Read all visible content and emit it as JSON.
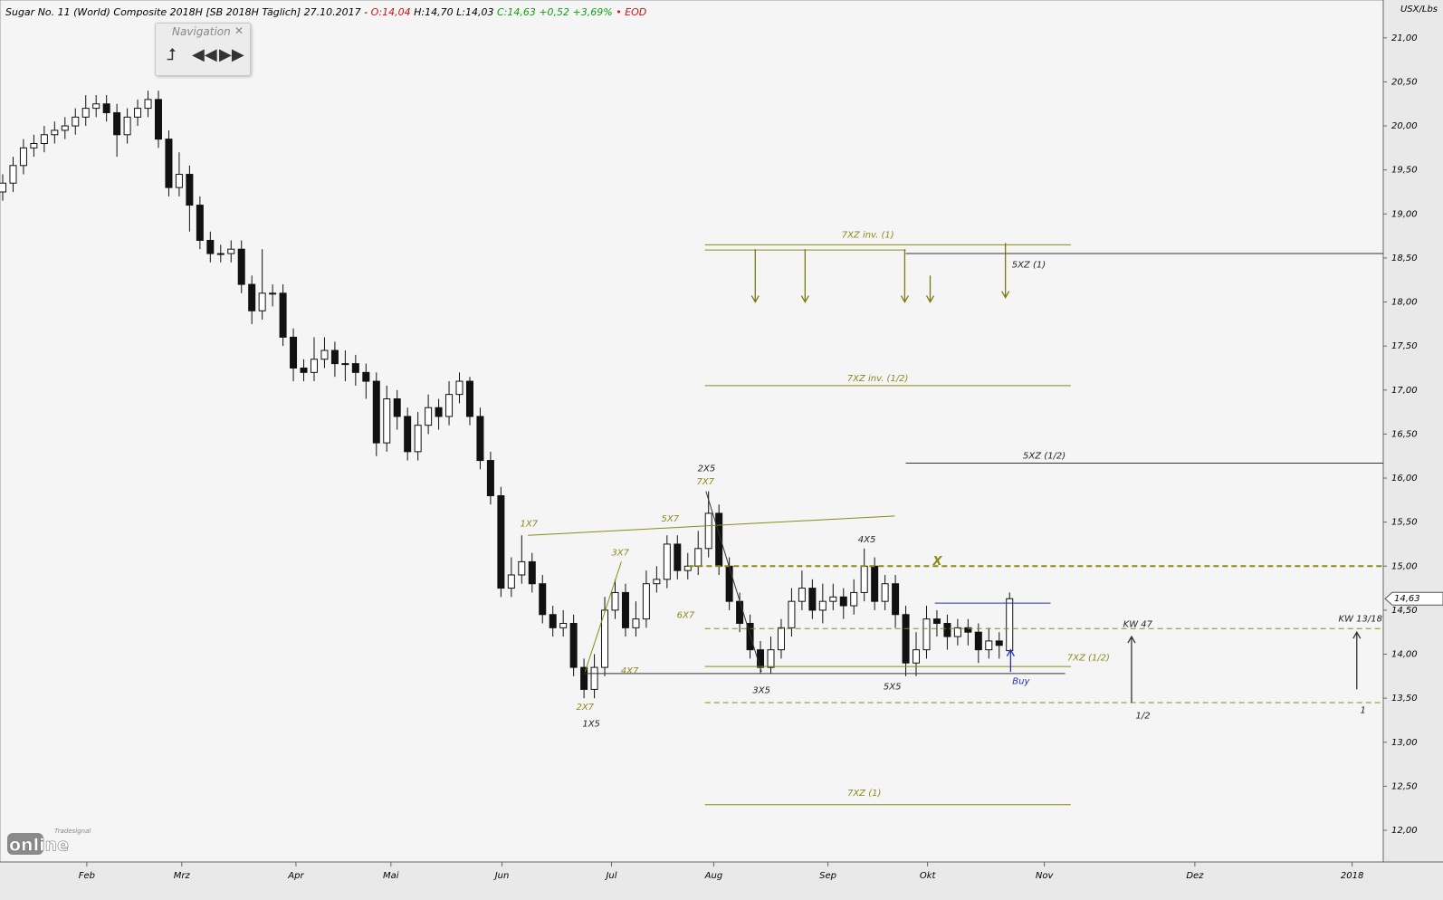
{
  "header": {
    "title": "Sugar No. 11 (World) Composite 2018H [SB 2018H Täglich] 27.10.2017 -",
    "open": "O:14,04",
    "hl": "H:14,70 L:14,03",
    "change": "C:14,63 +0,52 +3,69%",
    "eod": "• EOD"
  },
  "navigation": {
    "title": "Navigation"
  },
  "logo": {
    "small": "Tradesignal",
    "big": "online"
  },
  "chart_data": {
    "type": "candlestick",
    "y_axis_label": "USX/Lbs",
    "last_price_label": "14,63",
    "last_price": 14.63,
    "xlim": [
      0,
      266
    ],
    "ylim": [
      11.64,
      21.43
    ],
    "grid": false,
    "xticks": [
      {
        "value": 16.2,
        "label": "Feb"
      },
      {
        "value": 34.5,
        "label": "Mrz"
      },
      {
        "value": 56.5,
        "label": "Apr"
      },
      {
        "value": 74.8,
        "label": "Mai"
      },
      {
        "value": 96.2,
        "label": "Jun"
      },
      {
        "value": 117.3,
        "label": "Jul"
      },
      {
        "value": 137,
        "label": "Aug"
      },
      {
        "value": 159,
        "label": "Sep"
      },
      {
        "value": 178.2,
        "label": "Okt"
      },
      {
        "value": 200.7,
        "label": "Nov"
      },
      {
        "value": 229.7,
        "label": "Dez"
      },
      {
        "value": 260,
        "label": "2018"
      }
    ],
    "yticks": [
      {
        "value": 12,
        "label": "12,00"
      },
      {
        "value": 12.5,
        "label": "12,50"
      },
      {
        "value": 13,
        "label": "13,00"
      },
      {
        "value": 13.5,
        "label": "13,50"
      },
      {
        "value": 14,
        "label": "14,00"
      },
      {
        "value": 14.5,
        "label": "14,50"
      },
      {
        "value": 15,
        "label": "15,00"
      },
      {
        "value": 15.5,
        "label": "15,50"
      },
      {
        "value": 16,
        "label": "16,00"
      },
      {
        "value": 16.5,
        "label": "16,50"
      },
      {
        "value": 17,
        "label": "17,00"
      },
      {
        "value": 17.5,
        "label": "17,50"
      },
      {
        "value": 18,
        "label": "18,00"
      },
      {
        "value": 18.5,
        "label": "18,50"
      },
      {
        "value": 19,
        "label": "19,00"
      },
      {
        "value": 19.5,
        "label": "19,50"
      },
      {
        "value": 20,
        "label": "20,00"
      },
      {
        "value": 20.5,
        "label": "20,50"
      },
      {
        "value": 21,
        "label": "21,00"
      }
    ],
    "up_color": "#ffffff",
    "down_color": "#111111",
    "x": [
      0,
      2,
      4,
      6,
      8,
      10,
      12,
      14,
      16,
      18,
      20,
      22,
      24,
      26,
      28,
      30,
      32,
      34,
      36,
      38,
      40,
      42,
      44,
      46,
      48,
      50,
      52,
      54,
      56,
      58,
      60,
      62,
      64,
      66,
      68,
      70,
      72,
      74,
      76,
      78,
      80,
      82,
      84,
      86,
      88,
      90,
      92,
      94,
      96,
      98,
      100,
      102,
      104,
      106,
      108,
      110,
      112,
      114,
      116,
      118,
      120,
      122,
      124,
      126,
      128,
      130,
      132,
      134,
      136,
      138,
      140,
      142,
      144,
      146,
      148,
      150,
      152,
      154,
      156,
      158,
      160,
      162,
      164,
      166,
      168,
      170,
      172,
      174,
      176,
      178,
      180,
      182,
      184,
      186,
      188,
      190,
      192,
      194
    ],
    "open": [
      19.25,
      19.35,
      19.55,
      19.75,
      19.8,
      19.9,
      19.95,
      20.0,
      20.1,
      20.2,
      20.25,
      20.15,
      19.9,
      20.1,
      20.2,
      20.3,
      19.85,
      19.3,
      19.45,
      19.1,
      18.7,
      18.55,
      18.55,
      18.6,
      18.2,
      17.9,
      18.1,
      18.1,
      17.6,
      17.25,
      17.2,
      17.35,
      17.45,
      17.3,
      17.3,
      17.2,
      17.1,
      16.4,
      16.9,
      16.7,
      16.3,
      16.6,
      16.8,
      16.7,
      16.95,
      17.1,
      16.7,
      16.2,
      15.8,
      14.75,
      14.9,
      15.05,
      14.8,
      14.45,
      14.3,
      14.35,
      13.85,
      13.6,
      13.85,
      14.5,
      14.7,
      14.3,
      14.4,
      14.8,
      14.85,
      15.25,
      14.95,
      15.0,
      15.2,
      15.6,
      15.0,
      14.6,
      14.35,
      14.05,
      13.85,
      14.05,
      14.3,
      14.6,
      14.75,
      14.5,
      14.6,
      14.65,
      14.55,
      14.7,
      15.0,
      14.6,
      14.8,
      14.45,
      13.9,
      14.05,
      14.4,
      14.35,
      14.2,
      14.3,
      14.25,
      14.05,
      14.15,
      14.04
    ],
    "high": [
      19.45,
      19.65,
      19.85,
      19.9,
      20.0,
      20.05,
      20.1,
      20.2,
      20.35,
      20.35,
      20.35,
      20.25,
      20.2,
      20.3,
      20.4,
      20.4,
      19.95,
      19.7,
      19.55,
      19.2,
      18.8,
      18.65,
      18.7,
      18.7,
      18.3,
      18.6,
      18.2,
      18.2,
      17.7,
      17.35,
      17.6,
      17.6,
      17.55,
      17.45,
      17.4,
      17.3,
      17.2,
      17.05,
      17.0,
      16.8,
      16.75,
      16.95,
      16.9,
      17.1,
      17.2,
      17.15,
      16.8,
      16.3,
      15.9,
      15.1,
      15.35,
      15.15,
      14.9,
      14.55,
      14.5,
      14.45,
      13.95,
      14.0,
      14.65,
      14.85,
      14.8,
      14.6,
      14.95,
      15.0,
      15.35,
      15.35,
      15.15,
      15.4,
      15.85,
      15.7,
      15.1,
      14.7,
      14.45,
      14.15,
      14.2,
      14.4,
      14.75,
      14.95,
      14.85,
      14.8,
      14.8,
      14.75,
      14.85,
      15.2,
      15.1,
      14.9,
      14.9,
      14.55,
      14.25,
      14.55,
      14.5,
      14.45,
      14.4,
      14.4,
      14.35,
      14.3,
      14.25,
      14.7
    ],
    "low": [
      19.15,
      19.25,
      19.45,
      19.65,
      19.7,
      19.8,
      19.85,
      19.9,
      20.0,
      20.1,
      20.05,
      19.65,
      19.8,
      20.0,
      20.1,
      19.75,
      19.2,
      19.2,
      18.8,
      18.6,
      18.45,
      18.45,
      18.45,
      18.1,
      17.75,
      17.8,
      17.95,
      17.5,
      17.1,
      17.1,
      17.1,
      17.25,
      17.15,
      17.1,
      17.05,
      16.9,
      16.25,
      16.3,
      16.55,
      16.2,
      16.2,
      16.5,
      16.55,
      16.6,
      16.85,
      16.6,
      16.1,
      15.7,
      14.65,
      14.65,
      14.8,
      14.7,
      14.35,
      14.2,
      14.2,
      13.75,
      13.5,
      13.5,
      13.75,
      14.4,
      14.2,
      14.2,
      14.3,
      14.7,
      14.75,
      14.85,
      14.85,
      14.9,
      15.1,
      14.9,
      14.5,
      14.25,
      13.95,
      13.78,
      13.78,
      13.95,
      14.2,
      14.5,
      14.4,
      14.35,
      14.5,
      14.4,
      14.45,
      14.6,
      14.5,
      14.5,
      14.3,
      13.75,
      13.75,
      13.95,
      14.2,
      14.05,
      14.1,
      14.1,
      13.9,
      13.95,
      13.95,
      14.03
    ],
    "close": [
      19.35,
      19.55,
      19.75,
      19.8,
      19.9,
      19.95,
      20.0,
      20.1,
      20.2,
      20.25,
      20.15,
      19.9,
      20.1,
      20.2,
      20.3,
      19.85,
      19.3,
      19.45,
      19.1,
      18.7,
      18.55,
      18.55,
      18.6,
      18.2,
      17.9,
      18.1,
      18.1,
      17.6,
      17.25,
      17.2,
      17.35,
      17.45,
      17.3,
      17.3,
      17.2,
      17.1,
      16.4,
      16.9,
      16.7,
      16.3,
      16.6,
      16.8,
      16.7,
      16.95,
      17.1,
      16.7,
      16.2,
      15.8,
      14.75,
      14.9,
      15.05,
      14.8,
      14.45,
      14.3,
      14.35,
      13.85,
      13.6,
      13.85,
      14.5,
      14.7,
      14.3,
      14.4,
      14.8,
      14.85,
      15.25,
      14.95,
      15.0,
      15.2,
      15.6,
      15.0,
      14.6,
      14.35,
      14.05,
      13.85,
      14.05,
      14.3,
      14.6,
      14.75,
      14.5,
      14.6,
      14.65,
      14.55,
      14.7,
      15.0,
      14.6,
      14.8,
      14.45,
      13.9,
      14.05,
      14.4,
      14.35,
      14.2,
      14.3,
      14.25,
      14.05,
      14.15,
      14.1,
      14.63
    ],
    "lines": [
      {
        "x": [
          135.3,
          205.8
        ],
        "y": [
          18.65,
          18.65
        ],
        "color": "#8a8a1a",
        "dash": false
      },
      {
        "x": [
          135.3,
          174
        ],
        "y": [
          18.59,
          18.59
        ],
        "color": "#8a8a1a",
        "dash": false
      },
      {
        "x": [
          174,
          266
        ],
        "y": [
          18.55,
          18.55
        ],
        "color": "#333333",
        "dash": false
      },
      {
        "x": [
          135.3,
          205.8
        ],
        "y": [
          17.05,
          17.05
        ],
        "color": "#8a8a1a",
        "dash": false
      },
      {
        "x": [
          174,
          266
        ],
        "y": [
          16.17,
          16.17
        ],
        "color": "#333333",
        "dash": false
      },
      {
        "x": [
          132.1,
          266
        ],
        "y": [
          15.0,
          15.0
        ],
        "color": "#8a8a1a",
        "dash": true
      },
      {
        "x": [
          135.3,
          266
        ],
        "y": [
          14.29,
          14.29
        ],
        "color": "#8a8a1a",
        "dash": true
      },
      {
        "x": [
          135.3,
          205.8
        ],
        "y": [
          13.86,
          13.86
        ],
        "color": "#8a8a1a",
        "dash": false
      },
      {
        "x": [
          112,
          204.7
        ],
        "y": [
          13.78,
          13.78
        ],
        "color": "#333333",
        "dash": false
      },
      {
        "x": [
          135.3,
          266
        ],
        "y": [
          13.45,
          13.45
        ],
        "color": "#8a8a1a",
        "dash": true
      },
      {
        "x": [
          135.3,
          205.8
        ],
        "y": [
          12.29,
          12.29
        ],
        "color": "#8a8a1a",
        "dash": false
      },
      {
        "x": [
          179.6,
          201.9
        ],
        "y": [
          14.58,
          14.58
        ],
        "color": "#2233bb",
        "dash": false
      },
      {
        "x": [
          101.2,
          171.9
        ],
        "y": [
          15.35,
          15.57
        ],
        "color": "#8a8a1a",
        "dash": false
      },
      {
        "x": [
          135.5,
          146.2
        ],
        "y": [
          15.85,
          13.8
        ],
        "color": "#333333",
        "dash": false
      },
      {
        "x": [
          112.2,
          119.2
        ],
        "y": [
          13.8,
          15.05
        ],
        "color": "#8a8a1a",
        "dash": false
      }
    ],
    "arrows": [
      {
        "x": 145,
        "from": 18.6,
        "to": 18.0,
        "color": "#7a7a10"
      },
      {
        "x": 154.6,
        "from": 18.6,
        "to": 18.0,
        "color": "#7a7a10"
      },
      {
        "x": 173.8,
        "from": 18.6,
        "to": 18.0,
        "color": "#7a7a10"
      },
      {
        "x": 178.7,
        "from": 18.3,
        "to": 18.0,
        "color": "#7a7a10"
      },
      {
        "x": 193.2,
        "from": 18.67,
        "to": 18.05,
        "color": "#7a7a10"
      },
      {
        "x": 217.5,
        "from": 13.45,
        "to": 14.2,
        "color": "#333333"
      },
      {
        "x": 260.9,
        "from": 13.6,
        "to": 14.25,
        "color": "#333333"
      },
      {
        "x": 194.2,
        "from": 13.8,
        "to": 14.05,
        "color": "#2233bb"
      }
    ],
    "annotations": [
      {
        "text": "1X7",
        "x": 101.4,
        "y": 15.48,
        "color": "#8a8a1a"
      },
      {
        "text": "2X7",
        "x": 112.2,
        "y": 13.4,
        "color": "#8a8a1a"
      },
      {
        "text": "3X7",
        "x": 119.0,
        "y": 15.15,
        "color": "#8a8a1a"
      },
      {
        "text": "4X7",
        "x": 120.8,
        "y": 13.81,
        "color": "#8a8a1a"
      },
      {
        "text": "5X7",
        "x": 128.6,
        "y": 15.54,
        "color": "#8a8a1a"
      },
      {
        "text": "6X7",
        "x": 131.6,
        "y": 14.44,
        "color": "#8a8a1a"
      },
      {
        "text": "7X7",
        "x": 135.4,
        "y": 15.96,
        "color": "#8a8a1a"
      },
      {
        "text": "1X5",
        "x": 113.4,
        "y": 13.21,
        "color": "#222222"
      },
      {
        "text": "2X5",
        "x": 135.6,
        "y": 16.11,
        "color": "#222222"
      },
      {
        "text": "3X5",
        "x": 146.2,
        "y": 13.59,
        "color": "#222222"
      },
      {
        "text": "4X5",
        "x": 166.5,
        "y": 15.3,
        "color": "#222222"
      },
      {
        "text": "5X5",
        "x": 171.4,
        "y": 13.63,
        "color": "#222222"
      },
      {
        "text": "7XZ inv. (1)",
        "x": 166.7,
        "y": 18.76,
        "color": "#8a8a1a"
      },
      {
        "text": "7XZ inv. (1/2)",
        "x": 168.6,
        "y": 17.13,
        "color": "#8a8a1a"
      },
      {
        "text": "5XZ (1)",
        "x": 197.7,
        "y": 18.42,
        "color": "#222222"
      },
      {
        "text": "5XZ (1/2)",
        "x": 200.7,
        "y": 16.25,
        "color": "#222222"
      },
      {
        "text": "7XZ (1/2)",
        "x": 209.2,
        "y": 13.96,
        "color": "#8a8a1a"
      },
      {
        "text": "7XZ (1)",
        "x": 166.0,
        "y": 12.42,
        "color": "#8a8a1a"
      },
      {
        "text": "X",
        "x": 180.1,
        "y": 15.05,
        "color": "#8a8a1a"
      },
      {
        "text": "Buy",
        "x": 196.2,
        "y": 13.69,
        "color": "#2233bb"
      },
      {
        "text": "KW 47",
        "x": 218.7,
        "y": 14.34,
        "color": "#222222"
      },
      {
        "text": "KW 13/18",
        "x": 261.6,
        "y": 14.4,
        "color": "#222222"
      },
      {
        "text": "1/2",
        "x": 219.7,
        "y": 13.3,
        "color": "#222222"
      },
      {
        "text": "1",
        "x": 262.1,
        "y": 13.36,
        "color": "#222222"
      }
    ]
  }
}
